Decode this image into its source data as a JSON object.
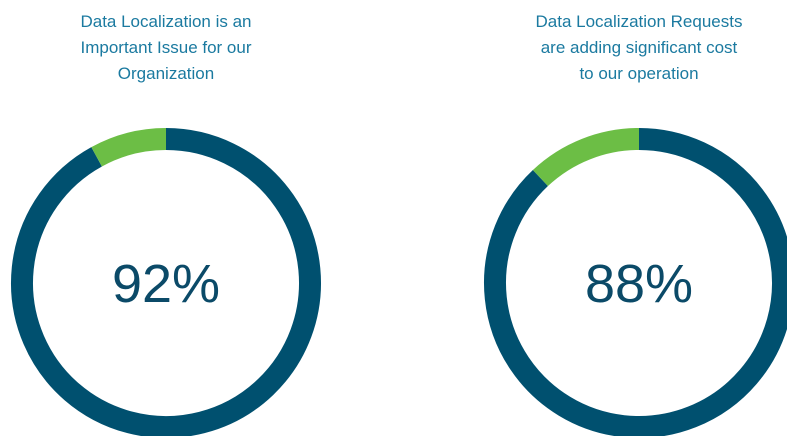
{
  "chart_data": [
    {
      "type": "donut",
      "title": [
        "Data Localization is an",
        "Important Issue for our",
        "Organization"
      ],
      "categories": [
        null,
        null
      ],
      "values": [
        92,
        8
      ],
      "value_labels": [
        "92%",
        null
      ],
      "colors": [
        "#00506f",
        "#6cbe45"
      ]
    },
    {
      "type": "donut",
      "title": [
        "Data Localization Requests",
        "are adding significant cost",
        "to our operation"
      ],
      "categories": [
        null,
        null
      ],
      "values": [
        88,
        12
      ],
      "value_labels": [
        "88%",
        null
      ],
      "colors": [
        "#00506f",
        "#6cbe45"
      ]
    }
  ]
}
